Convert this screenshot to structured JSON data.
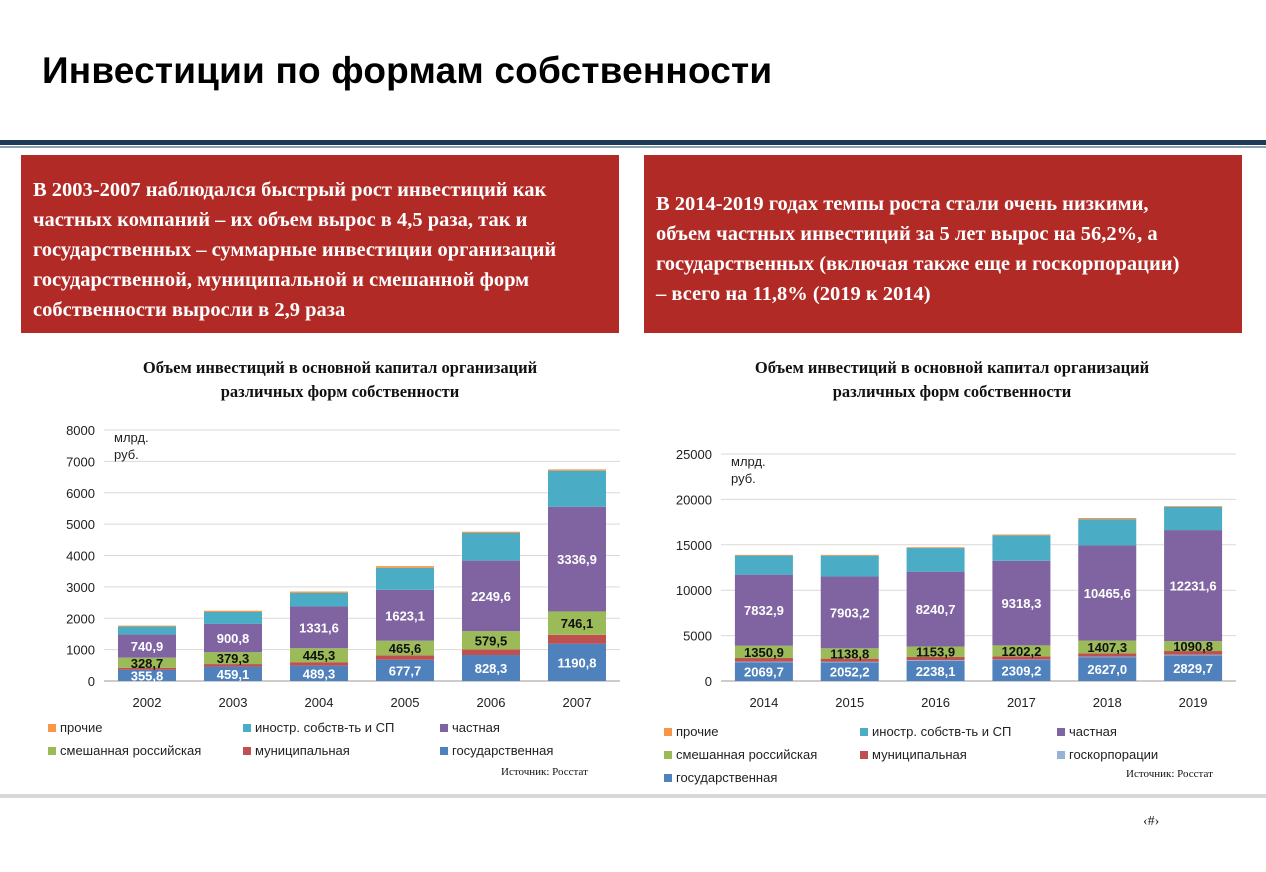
{
  "title": "Инвестиции по формам собственности",
  "box_left_lines": [
    "В 2003-2007 наблюдался быстрый рост инвестиций как",
    "частных компаний – их объем вырос в 4,5 раза, так и",
    "государственных – суммарные инвестиции организаций",
    "государственной, муниципальной и смешанной форм",
    "собственности выросли в 2,9 раза"
  ],
  "box_right_lines": [
    "В 2014-2019 годах темпы роста стали очень низкими,",
    "объем частных инвестиций за 5 лет вырос на 56,2%, а",
    "государственных (включая также еще и госкорпорации)",
    "– всего на 11,8% (2019 к 2014)"
  ],
  "source_left": "Источник: Росстат",
  "source_right": "Источник: Росстат",
  "page_number": "‹#›",
  "colors": {
    "red_box": "#b22a26",
    "прочие": "#f79646",
    "иностр": "#4bacc6",
    "частная": "#8064a2",
    "смешанная": "#9bbb59",
    "муниципальная": "#c0504d",
    "государственная": "#4f81bd",
    "госкорпорации": "#95b3d7"
  },
  "chart_data": [
    {
      "type": "bar",
      "stacked": true,
      "title_lines": [
        "Объем инвестиций в основной капитал организаций",
        "различных форм собственности"
      ],
      "unit_lines": [
        "млрд.",
        "руб."
      ],
      "categories": [
        "2002",
        "2003",
        "2004",
        "2005",
        "2006",
        "2007"
      ],
      "ylim": [
        0,
        8000
      ],
      "yticks": [
        "0",
        "1000",
        "2000",
        "3000",
        "4000",
        "5000",
        "6000",
        "7000",
        "8000"
      ],
      "grid": true,
      "legend_position": "bottom",
      "legend_rows": [
        [
          "прочие",
          "иностр. собств-ть и СП",
          "частная"
        ],
        [
          "смешанная российская",
          "муниципальная",
          "государственная"
        ]
      ],
      "series": [
        {
          "name": "государственная",
          "color": "#4f81bd",
          "values": [
            355.8,
            459.1,
            489.3,
            677.7,
            828.3,
            1190.8
          ],
          "labels": [
            "355,8",
            "459,1",
            "489,3",
            "677,7",
            "828,3",
            "1190,8"
          ]
        },
        {
          "name": "муниципальная",
          "color": "#c0504d",
          "values": [
            60,
            80,
            110,
            140,
            180,
            280
          ],
          "labels": null
        },
        {
          "name": "смешанная российская",
          "color": "#9bbb59",
          "values": [
            328.7,
            379.3,
            445.3,
            465.6,
            579.5,
            746.1
          ],
          "labels": [
            "328,7",
            "379,3",
            "445,3",
            "465,6",
            "579,5",
            "746,1"
          ]
        },
        {
          "name": "частная",
          "color": "#8064a2",
          "values": [
            740.9,
            900.8,
            1331.6,
            1623.1,
            2249.6,
            3336.9
          ],
          "labels": [
            "740,9",
            "900,8",
            "1331,6",
            "1623,1",
            "2249,6",
            "3336,9"
          ]
        },
        {
          "name": "иностр. собств-ть и СП",
          "color": "#4bacc6",
          "values": [
            250,
            380,
            430,
            700,
            880,
            1150
          ],
          "labels": null
        },
        {
          "name": "прочие",
          "color": "#f79646",
          "values": [
            30,
            40,
            45,
            55,
            40,
            40
          ],
          "labels": null
        }
      ]
    },
    {
      "type": "bar",
      "stacked": true,
      "title_lines": [
        "Объем инвестиций в основной капитал организаций",
        "различных форм собственности"
      ],
      "unit_lines": [
        "млрд.",
        "руб."
      ],
      "categories": [
        "2014",
        "2015",
        "2016",
        "2017",
        "2018",
        "2019"
      ],
      "ylim": [
        0,
        25000
      ],
      "yticks": [
        "0",
        "5000",
        "10000",
        "15000",
        "20000",
        "25000"
      ],
      "grid": true,
      "legend_position": "bottom",
      "legend_rows": [
        [
          "прочие",
          "иностр. собств-ть и СП",
          "частная"
        ],
        [
          "смешанная российская",
          "муниципальная",
          "госкорпорации"
        ],
        [
          "государственная"
        ]
      ],
      "series": [
        {
          "name": "государственная",
          "color": "#4f81bd",
          "values": [
            2069.7,
            2052.2,
            2238.1,
            2309.2,
            2627.0,
            2829.7
          ],
          "labels": [
            "2069,7",
            "2052,2",
            "2238,1",
            "2309,2",
            "2627,0",
            "2829,7"
          ]
        },
        {
          "name": "госкорпорации",
          "color": "#95b3d7",
          "values": [
            60,
            60,
            60,
            60,
            70,
            70
          ],
          "labels": null
        },
        {
          "name": "муниципальная",
          "color": "#c0504d",
          "values": [
            400,
            350,
            350,
            350,
            350,
            400
          ],
          "labels": null
        },
        {
          "name": "смешанная российская",
          "color": "#9bbb59",
          "values": [
            1350.9,
            1138.8,
            1153.9,
            1202.2,
            1407.3,
            1090.8
          ],
          "labels": [
            "1350,9",
            "1138,8",
            "1153,9",
            "1202,2",
            "1407,3",
            "1090,8"
          ]
        },
        {
          "name": "частная",
          "color": "#8064a2",
          "values": [
            7832.9,
            7903.2,
            8240.7,
            9318.3,
            10465.6,
            12231.6
          ],
          "labels": [
            "7832,9",
            "7903,2",
            "8240,7",
            "9318,3",
            "10465,6",
            "12231,6"
          ]
        },
        {
          "name": "иностр. собств-ть и СП",
          "color": "#4bacc6",
          "values": [
            2100,
            2300,
            2600,
            2800,
            2900,
            2550
          ],
          "labels": null
        },
        {
          "name": "прочие",
          "color": "#f79646",
          "values": [
            80,
            90,
            90,
            100,
            130,
            90
          ],
          "labels": null
        }
      ]
    }
  ]
}
